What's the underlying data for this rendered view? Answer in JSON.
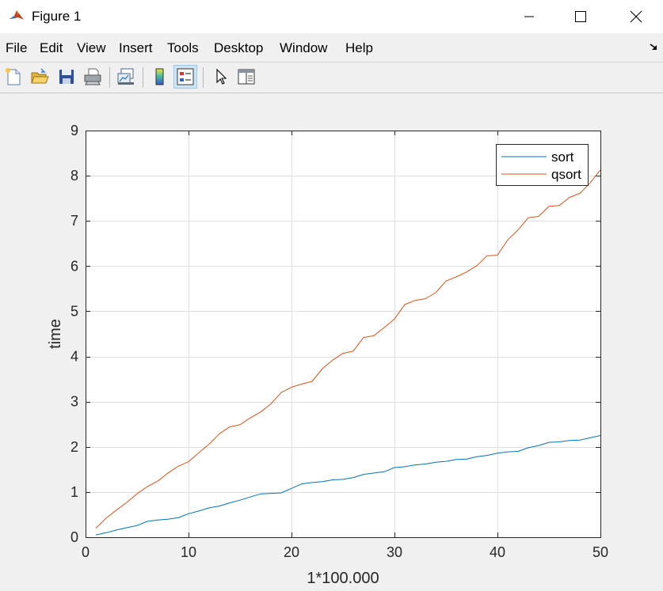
{
  "window": {
    "title": "Figure 1",
    "icon": "matlab-icon",
    "controls": [
      "minimize-icon",
      "maximize-icon",
      "close-icon"
    ]
  },
  "menubar": {
    "items": [
      "File",
      "Edit",
      "View",
      "Insert",
      "Tools",
      "Desktop",
      "Window",
      "Help"
    ]
  },
  "toolbar": {
    "buttons": [
      {
        "name": "new-figure",
        "icon": "new-file-icon"
      },
      {
        "name": "open-file",
        "icon": "folder-open-icon"
      },
      {
        "name": "save-figure",
        "icon": "floppy-disk-icon"
      },
      {
        "name": "print-figure",
        "icon": "printer-icon"
      },
      {
        "name": "link-plot",
        "icon": "link-plot-icon"
      },
      {
        "name": "insert-colorbar",
        "icon": "colorbar-icon"
      },
      {
        "name": "insert-legend",
        "icon": "legend-icon",
        "active": true
      },
      {
        "name": "edit-plot",
        "icon": "pointer-arrow-icon"
      },
      {
        "name": "property-inspector",
        "icon": "property-panel-icon"
      }
    ]
  },
  "chart_data": {
    "type": "line",
    "title": "",
    "xlabel": "1*100.000",
    "ylabel": "time",
    "xlim": [
      0,
      50
    ],
    "ylim": [
      0,
      9
    ],
    "xticks": [
      0,
      10,
      20,
      30,
      40,
      50
    ],
    "yticks": [
      0,
      1,
      2,
      3,
      4,
      5,
      6,
      7,
      8,
      9
    ],
    "grid": true,
    "legend": {
      "placement": "top-right",
      "entries": [
        "sort",
        "qsort"
      ]
    },
    "x": [
      1,
      2,
      3,
      4,
      5,
      6,
      7,
      8,
      9,
      10,
      11,
      12,
      13,
      14,
      15,
      16,
      17,
      18,
      19,
      20,
      21,
      22,
      23,
      24,
      25,
      26,
      27,
      28,
      29,
      30,
      31,
      32,
      33,
      34,
      35,
      36,
      37,
      38,
      39,
      40,
      41,
      42,
      43,
      44,
      45,
      46,
      47,
      48,
      49,
      50
    ],
    "series": [
      {
        "name": "sort",
        "color": "#0072bd",
        "values": [
          0.05,
          0.1,
          0.16,
          0.21,
          0.26,
          0.35,
          0.38,
          0.4,
          0.43,
          0.52,
          0.58,
          0.65,
          0.69,
          0.76,
          0.82,
          0.89,
          0.96,
          0.97,
          0.98,
          1.08,
          1.18,
          1.21,
          1.23,
          1.27,
          1.28,
          1.32,
          1.39,
          1.42,
          1.45,
          1.54,
          1.56,
          1.6,
          1.62,
          1.66,
          1.68,
          1.72,
          1.73,
          1.78,
          1.81,
          1.86,
          1.89,
          1.9,
          1.98,
          2.03,
          2.1,
          2.11,
          2.14,
          2.15,
          2.2,
          2.25
        ]
      },
      {
        "name": "qsort",
        "color": "#d95319",
        "values": [
          0.2,
          0.42,
          0.6,
          0.77,
          0.96,
          1.12,
          1.24,
          1.42,
          1.57,
          1.67,
          1.87,
          2.06,
          2.29,
          2.44,
          2.49,
          2.64,
          2.77,
          2.95,
          3.2,
          3.32,
          3.39,
          3.45,
          3.73,
          3.92,
          4.07,
          4.12,
          4.42,
          4.46,
          4.64,
          4.83,
          5.15,
          5.24,
          5.28,
          5.41,
          5.67,
          5.76,
          5.87,
          6.01,
          6.23,
          6.24,
          6.58,
          6.8,
          7.07,
          7.1,
          7.32,
          7.34,
          7.52,
          7.61,
          7.84,
          8.13
        ]
      }
    ]
  }
}
